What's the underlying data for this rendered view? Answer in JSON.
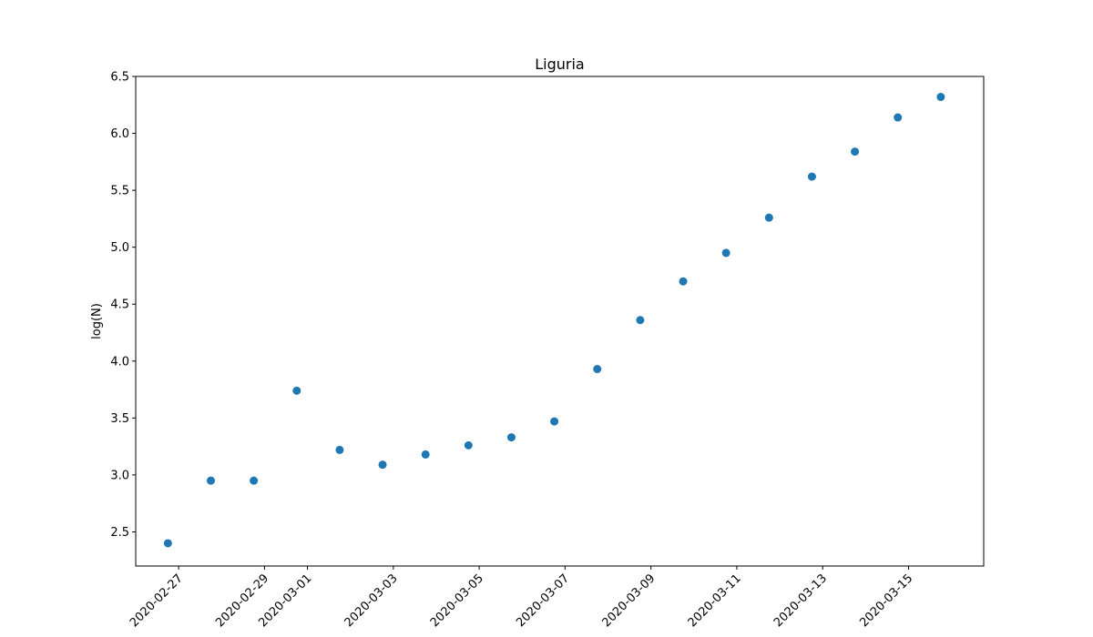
{
  "chart_data": {
    "type": "scatter",
    "title": "Liguria",
    "xlabel": "",
    "ylabel": "log(N)",
    "x_type": "date",
    "x": [
      "2020-02-26T18:00",
      "2020-02-27T18:00",
      "2020-02-28T18:00",
      "2020-02-29T18:00",
      "2020-03-01T18:00",
      "2020-03-02T18:00",
      "2020-03-03T18:00",
      "2020-03-04T18:00",
      "2020-03-05T18:00",
      "2020-03-06T18:00",
      "2020-03-07T18:00",
      "2020-03-08T18:00",
      "2020-03-09T18:00",
      "2020-03-10T18:00",
      "2020-03-11T18:00",
      "2020-03-12T18:00",
      "2020-03-13T18:00",
      "2020-03-14T18:00",
      "2020-03-15T18:00"
    ],
    "y": [
      2.4,
      2.95,
      2.95,
      3.74,
      3.22,
      3.09,
      3.18,
      3.26,
      3.33,
      3.47,
      3.93,
      4.36,
      4.7,
      4.95,
      5.26,
      5.62,
      5.84,
      6.14,
      6.32
    ],
    "xlim": [
      "2020-02-26T00:00",
      "2020-03-16T18:00"
    ],
    "ylim": [
      2.2,
      6.5
    ],
    "x_ticks": [
      "2020-02-27",
      "2020-02-29",
      "2020-03-01",
      "2020-03-03",
      "2020-03-05",
      "2020-03-07",
      "2020-03-09",
      "2020-03-11",
      "2020-03-13",
      "2020-03-15"
    ],
    "y_ticks": [
      "2.5",
      "3.0",
      "3.5",
      "4.0",
      "4.5",
      "5.0",
      "5.5",
      "6.0",
      "6.5"
    ],
    "grid": false,
    "legend": "none",
    "marker_color": "#1f77b4"
  }
}
